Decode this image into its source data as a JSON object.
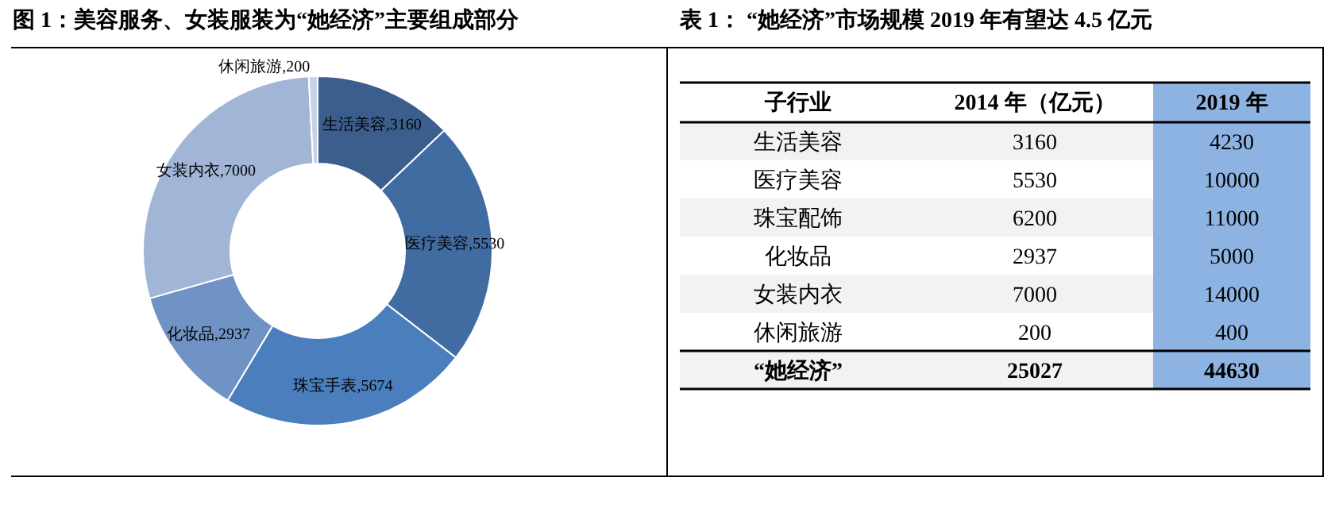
{
  "chart_data": [
    {
      "type": "donut",
      "title": "图 1：美容服务、女装服装为“她经济”主要组成部分",
      "categories": [
        "生活美容",
        "医疗美容",
        "珠宝手表",
        "化妆品",
        "女装内衣",
        "休闲旅游"
      ],
      "values": [
        3160,
        5530,
        5674,
        2937,
        7000,
        200
      ],
      "value_labels": [
        ",3160",
        ",5530",
        ",5674",
        ",2937",
        ",7000",
        ",200"
      ],
      "colors": [
        "#3b5e8c",
        "#416ca2",
        "#4a7ebd",
        "#7093c6",
        "#a1b5d7",
        "#c6d2e7"
      ]
    },
    {
      "type": "heatmap",
      "title": "表 1：  “她经济”市场规模 2019 年有望达 4.5 亿元",
      "ylabel": "子行业",
      "categories": [
        "2014 年（亿元）",
        "2019 年"
      ],
      "y_categories": [
        "生活美容",
        "医疗美容",
        "珠宝配饰",
        "化妆品",
        "女装内衣",
        "休闲旅游",
        "“她经济”"
      ],
      "cells": [
        [
          3160,
          4230
        ],
        [
          5530,
          10000
        ],
        [
          6200,
          11000
        ],
        [
          2937,
          5000
        ],
        [
          7000,
          14000
        ],
        [
          200,
          400
        ],
        [
          25027,
          44630
        ]
      ],
      "colors": [
        "#ffffff",
        "#8db3e2"
      ],
      "data_labels": true
    }
  ]
}
